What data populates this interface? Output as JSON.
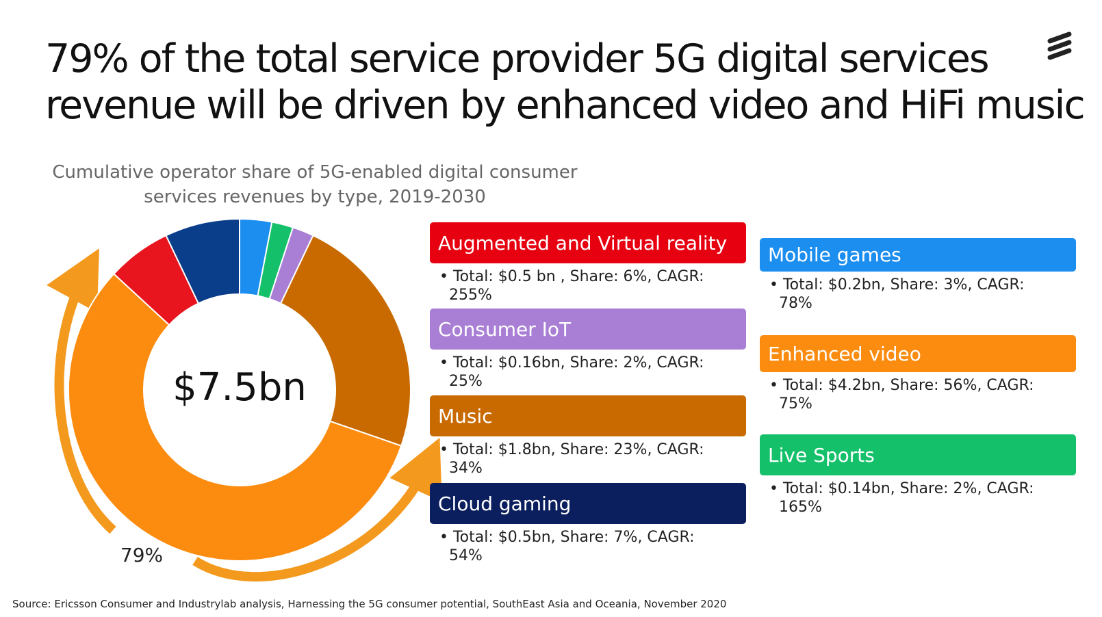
{
  "chart_data": {
    "type": "donut",
    "title": [
      "79% of the total service provider 5G digital services",
      "revenue will be driven by enhanced video and HiFi music"
    ],
    "subtitle": [
      "Cumulative operator share of 5G-enabled digital consumer",
      "services revenues by type, 2019-2030"
    ],
    "center_label": "$7.5bn",
    "annotation": "79%",
    "categories": [
      "Mobile games",
      "Live Sports",
      "Consumer IoT",
      "Music",
      "Enhanced video",
      "Augmented and Virtual reality",
      "Cloud gaming"
    ],
    "values": [
      3,
      2,
      2,
      23,
      56,
      6,
      7
    ],
    "colors": [
      "#1b8ef0",
      "#15c06a",
      "#a97fd6",
      "#c86a00",
      "#fb8c0f",
      "#e8141e",
      "#0a3d8a"
    ],
    "legend_colors": [
      "#1b8ef0",
      "#15c06a",
      "#a97fd6",
      "#c86a00",
      "#fb8c0f",
      "#e60010",
      "#0b1f5e"
    ],
    "details": [
      "Total: $0.2bn, Share: 3%, CAGR: 78%",
      "Total: $0.14bn, Share: 2%, CAGR: 165%",
      "Total: $0.16bn, Share: 2%, CAGR: 25%",
      "Total: $1.8bn, Share: 23%, CAGR: 34%",
      "Total: $4.2bn, Share: 56%, CAGR: 75%",
      "Total: $0.5 bn , Share: 6%, CAGR: 255%",
      "Total: $0.5bn, Share: 7%, CAGR: 54%"
    ]
  },
  "source": "Source: Ericsson Consumer and Industrylab analysis, Harnessing the 5G consumer potential, SouthEast Asia and Oceania, November 2020"
}
